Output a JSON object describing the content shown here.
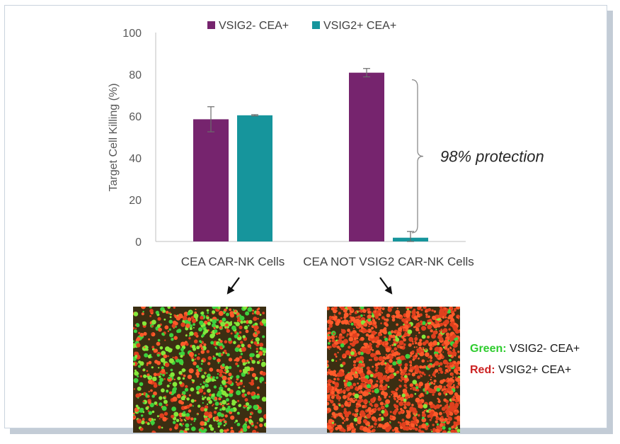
{
  "chart_data": {
    "type": "bar",
    "categories": [
      "CEA CAR-NK Cells",
      "CEA NOT VSIG2 CAR-NK Cells"
    ],
    "series": [
      {
        "name": "VSIG2- CEA+",
        "values": [
          58.5,
          80.8
        ],
        "errors": [
          6.0,
          2.0
        ]
      },
      {
        "name": "VSIG2+ CEA+",
        "values": [
          60.4,
          1.8
        ],
        "errors": [
          0.3,
          3.0
        ]
      }
    ],
    "ylabel": "Target Cell Killing (%)",
    "xlabel": "",
    "ylim": [
      0,
      100
    ],
    "yticks": [
      0,
      20,
      40,
      60,
      80,
      100
    ],
    "legend_position": "top",
    "grid": false,
    "annotation": "98% protection",
    "colors": {
      "VSIG2- CEA+": "#76246e",
      "VSIG2+ CEA+": "#16959c"
    }
  },
  "microscopy": {
    "key": [
      {
        "name": "Green:",
        "label": "VSIG2- CEA+",
        "color": "#2ecc2e"
      },
      {
        "name": "Red:",
        "label": "VSIG2+ CEA+",
        "color": "#cc2222"
      }
    ]
  }
}
